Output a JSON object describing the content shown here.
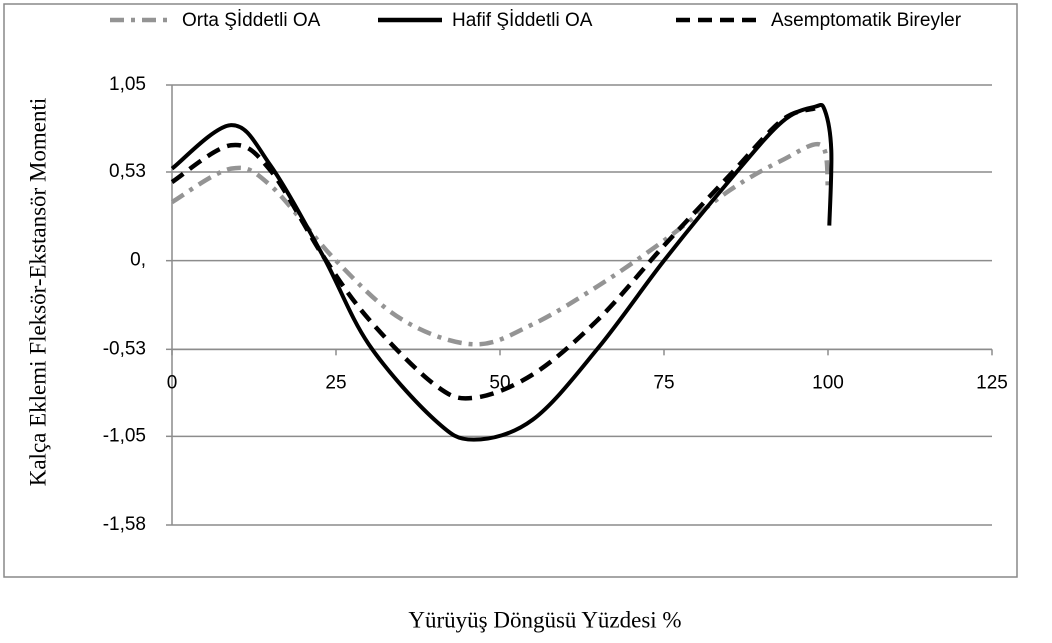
{
  "chart_data": {
    "type": "line",
    "xlabel": "Yürüyüş Döngüsü Yüzdesi %",
    "ylabel": "Kalça Eklemi Fleksör-Ekstansör Momenti",
    "xlim": [
      0,
      125
    ],
    "xticks": [
      0,
      25,
      50,
      75,
      100,
      125
    ],
    "ylim": [
      -1.58,
      1.05
    ],
    "yticks": [
      {
        "value": 1.05,
        "label": "1,05"
      },
      {
        "value": 0.53,
        "label": "0,53"
      },
      {
        "value": 0,
        "label": "0,"
      },
      {
        "value": -0.53,
        "label": "-0,53"
      },
      {
        "value": -1.05,
        "label": "-1,05"
      },
      {
        "value": -1.58,
        "label": "-1,58"
      }
    ],
    "x_axis_crosses_at": -0.53,
    "grid": true,
    "legend": "top",
    "series": [
      {
        "name": "Orta Şİddetli OA",
        "color": "#949494",
        "style": "dashdot",
        "x": [
          0,
          9,
          15,
          25,
          35,
          46,
          55,
          65,
          75,
          85,
          93,
          99,
          100
        ],
        "values": [
          0.35,
          0.55,
          0.45,
          0,
          -0.35,
          -0.5,
          -0.38,
          -0.15,
          0.12,
          0.42,
          0.6,
          0.69,
          0.42
        ]
      },
      {
        "name": "Hafif Şİddetli OA",
        "color": "#000000",
        "style": "solid",
        "x": [
          0,
          9,
          15,
          23,
          30,
          40,
          46,
          55,
          65,
          75,
          85,
          93,
          98,
          99.5,
          100.5,
          100.2
        ],
        "values": [
          0.55,
          0.81,
          0.57,
          0.03,
          -0.5,
          -0.95,
          -1.07,
          -0.95,
          -0.52,
          0,
          0.48,
          0.83,
          0.92,
          0.9,
          0.66,
          0.21
        ]
      },
      {
        "name": "Asemptomatik Bireyler",
        "color": "#000000",
        "style": "dashed",
        "x": [
          0,
          9,
          15,
          23,
          30,
          40,
          46,
          55,
          65,
          75,
          85,
          93,
          98
        ],
        "values": [
          0.47,
          0.69,
          0.54,
          0.03,
          -0.35,
          -0.74,
          -0.82,
          -0.68,
          -0.35,
          0.09,
          0.51,
          0.84,
          0.91
        ]
      }
    ]
  }
}
